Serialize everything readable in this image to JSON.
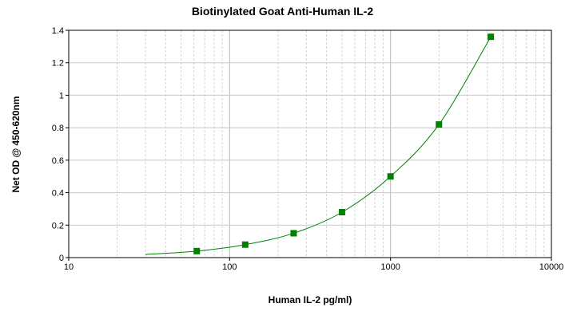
{
  "chart_data": {
    "type": "scatter",
    "title": "Biotinylated Goat Anti-Human IL-2",
    "xlabel": "Human IL-2 pg/ml)",
    "ylabel": "Net OD @ 450-620nm",
    "x_scale": "log",
    "xlim": [
      10,
      10000
    ],
    "ylim": [
      0,
      1.4
    ],
    "x_ticks": [
      "10",
      "100",
      "1000",
      "10000"
    ],
    "y_ticks": [
      "0",
      "0.2",
      "0.4",
      "0.6",
      "0.8",
      "1",
      "1.2",
      "1.4"
    ],
    "grid": true,
    "series": [
      {
        "color": "#008000",
        "marker": "square",
        "points": [
          {
            "x": 62.5,
            "y": 0.04
          },
          {
            "x": 125,
            "y": 0.08
          },
          {
            "x": 250,
            "y": 0.15
          },
          {
            "x": 500,
            "y": 0.28
          },
          {
            "x": 1000,
            "y": 0.5
          },
          {
            "x": 2000,
            "y": 0.82
          },
          {
            "x": 4200,
            "y": 1.36
          }
        ],
        "fit_curve": true
      }
    ]
  }
}
